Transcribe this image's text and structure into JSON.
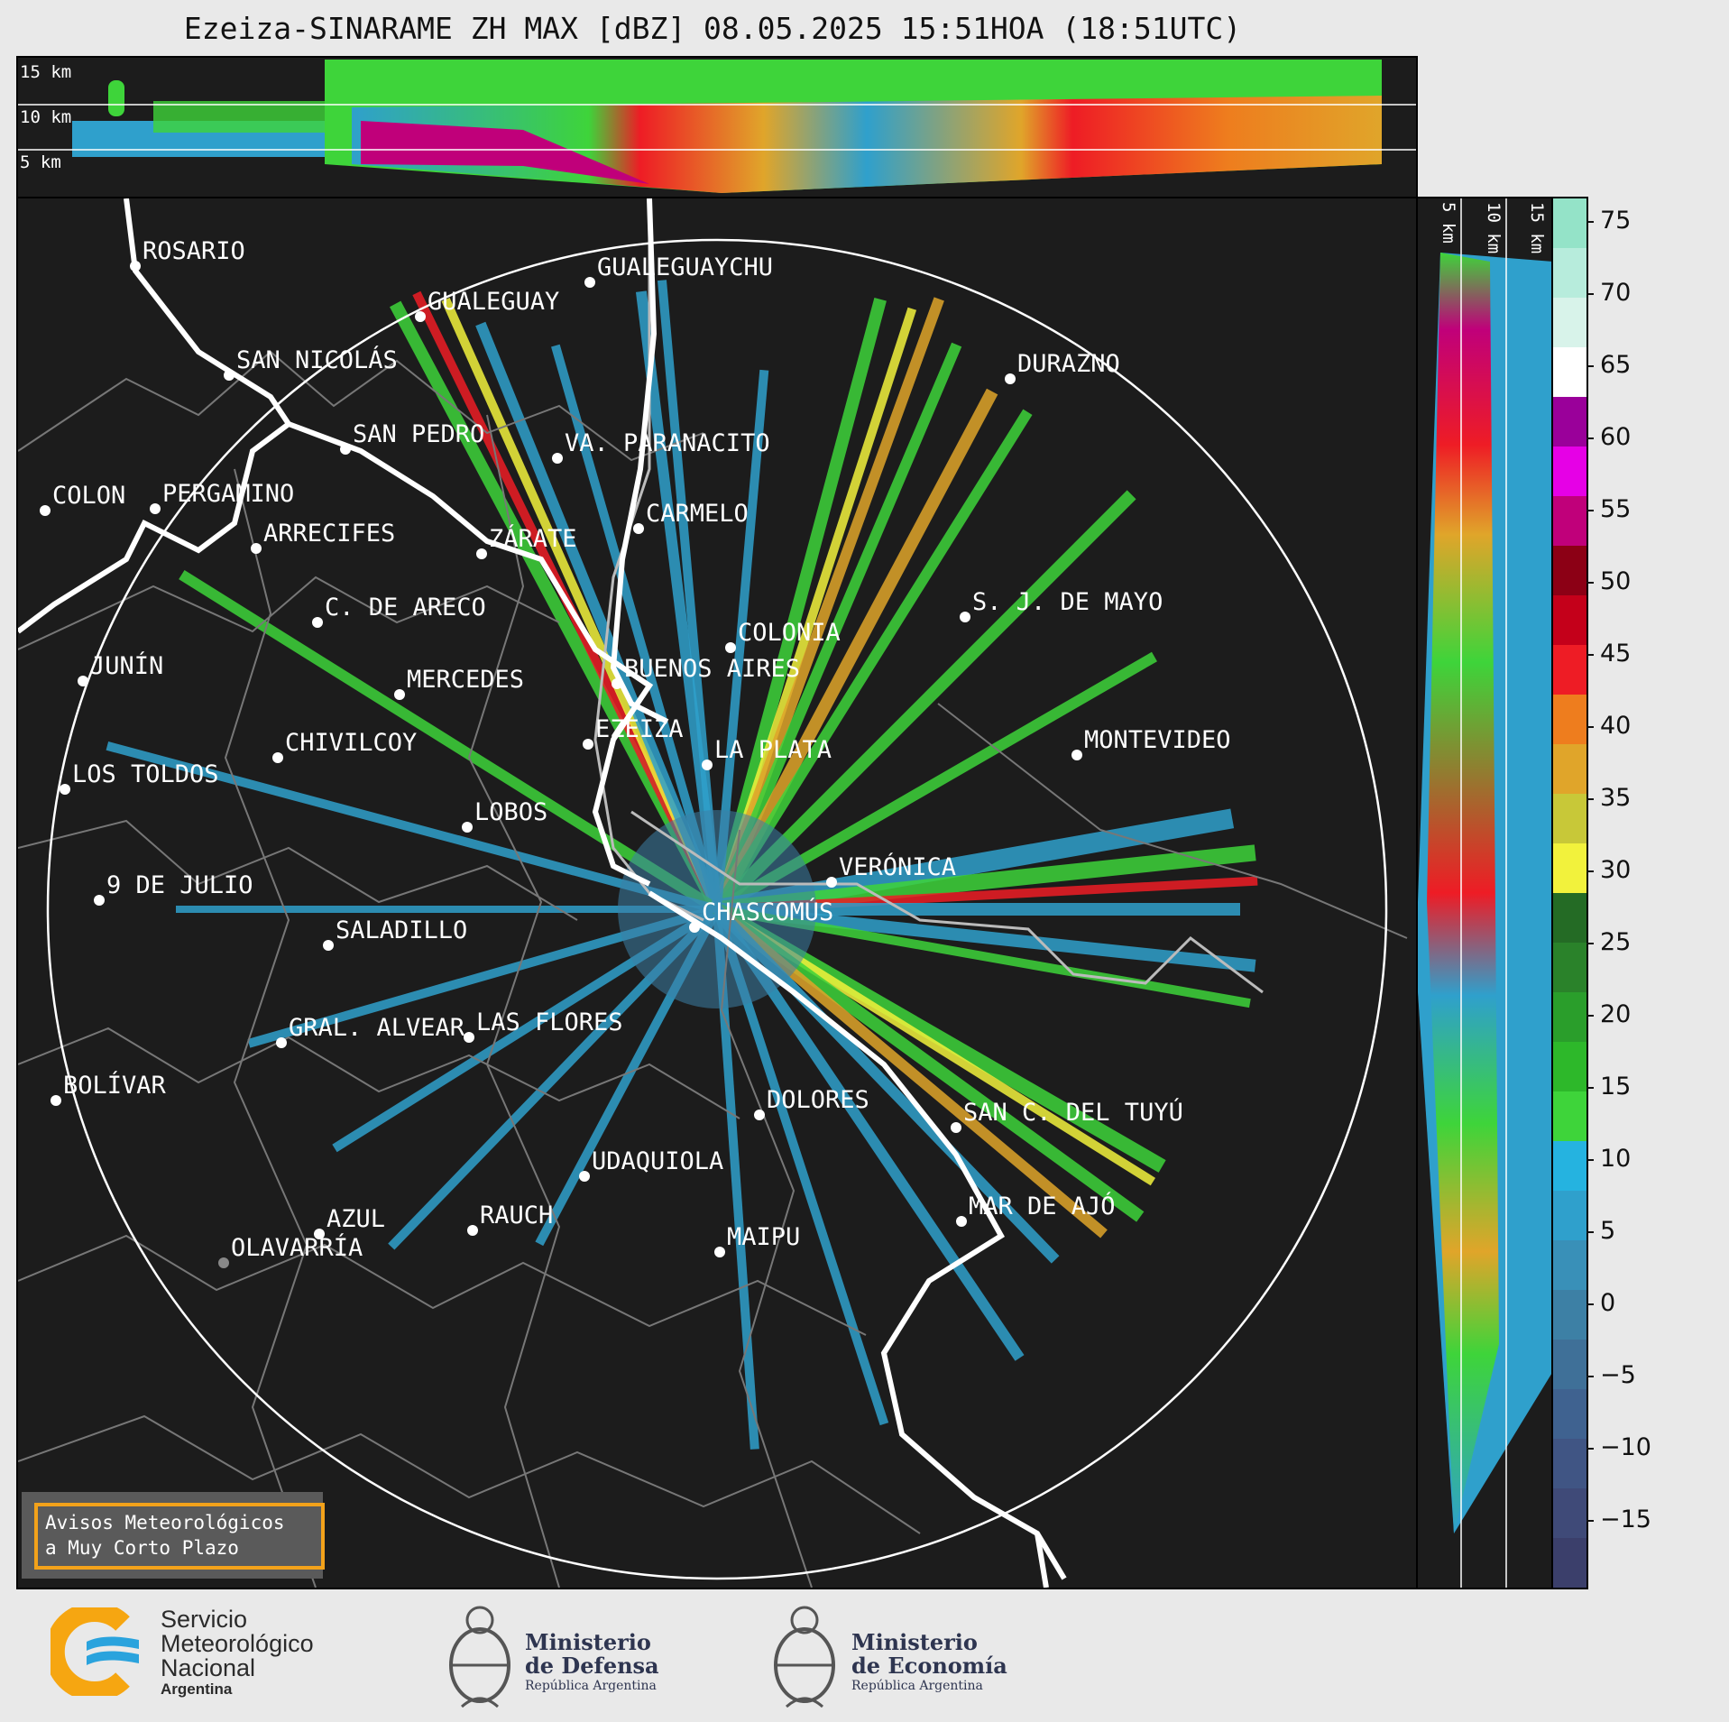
{
  "title": "Ezeiza-SINARAME ZH MAX [dBZ] 08.05.2025 15:51HOA (18:51UTC)",
  "top_panel": {
    "height_labels": [
      "15 km",
      "10 km",
      "5 km"
    ]
  },
  "side_panel": {
    "height_labels": [
      "5 km",
      "10 km",
      "15 km"
    ]
  },
  "colorbar": {
    "unit": "dBZ",
    "ticks": [
      "75",
      "70",
      "65",
      "60",
      "55",
      "50",
      "45",
      "40",
      "35",
      "30",
      "25",
      "20",
      "15",
      "10",
      "5",
      "0",
      "−5",
      "−10",
      "−15"
    ],
    "colors": [
      "#3b3f6b",
      "#3f4a78",
      "#405584",
      "#3f6290",
      "#3f7098",
      "#3d80a5",
      "#3990b8",
      "#2fa0cc",
      "#25b3e0",
      "#3ed43a",
      "#2db82a",
      "#2a9e2b",
      "#2a822a",
      "#246b25",
      "#f2f23c",
      "#c8c838",
      "#e0a52a",
      "#ee7d1e",
      "#ee1c25",
      "#c4001a",
      "#8c0015",
      "#c0007a",
      "#e600e6",
      "#9a009a",
      "#ffffff",
      "#d8f3ea",
      "#b7ecdc",
      "#94e3c8"
    ]
  },
  "cities": [
    {
      "name": "ROSARIO"
    },
    {
      "name": "GUALEGUAYCHU"
    },
    {
      "name": "GUALEGUAY"
    },
    {
      "name": "SAN NICOLÁS"
    },
    {
      "name": "DURAZNO"
    },
    {
      "name": "SAN PEDRO"
    },
    {
      "name": "VA. PARANACITO"
    },
    {
      "name": "COLON"
    },
    {
      "name": "PERGAMINO"
    },
    {
      "name": "CARMELO"
    },
    {
      "name": "ARRECIFES"
    },
    {
      "name": "ZÁRATE"
    },
    {
      "name": "S. J. DE MAYO"
    },
    {
      "name": "C. DE ARECO"
    },
    {
      "name": "COLONIA"
    },
    {
      "name": "JUNÍN"
    },
    {
      "name": "MERCEDES"
    },
    {
      "name": "BUENOS AIRES"
    },
    {
      "name": "EZEIZA"
    },
    {
      "name": "MONTEVIDEO"
    },
    {
      "name": "CHIVILCOY"
    },
    {
      "name": "LA PLATA"
    },
    {
      "name": "LOS TOLDOS"
    },
    {
      "name": "LOBOS"
    },
    {
      "name": "VERÓNICA"
    },
    {
      "name": "9 DE JULIO"
    },
    {
      "name": "CHASCOMÚS"
    },
    {
      "name": "SALADILLO"
    },
    {
      "name": "GRAL. ALVEAR"
    },
    {
      "name": "LAS FLORES"
    },
    {
      "name": "BOLÍVAR"
    },
    {
      "name": "DOLORES"
    },
    {
      "name": "SAN C. DEL TUYÚ"
    },
    {
      "name": "UDAQUIOLA"
    },
    {
      "name": "MAR DE AJÓ"
    },
    {
      "name": "AZUL"
    },
    {
      "name": "RAUCH"
    },
    {
      "name": "MAIPU"
    },
    {
      "name": "OLAVARRÍA"
    }
  ],
  "warning_box": {
    "line1": "Avisos Meteorológicos",
    "line2": "a Muy Corto Plazo"
  },
  "footer": {
    "smn": [
      "Servicio",
      "Meteorológico",
      "Nacional",
      "Argentina"
    ],
    "defensa": [
      "Ministerio",
      "de Defensa",
      "República Argentina"
    ],
    "economia": [
      "Ministerio",
      "de Economía",
      "República Argentina"
    ]
  }
}
